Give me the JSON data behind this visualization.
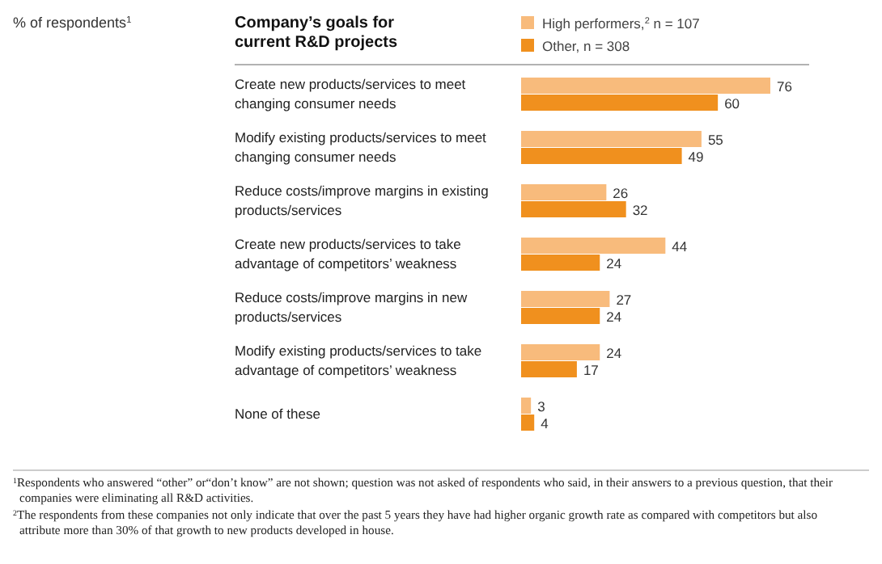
{
  "chart_data": {
    "type": "bar",
    "orientation": "horizontal",
    "title": "Company’s goals for current R&D projects",
    "categories": [
      "Create new products/services to meet changing consumer needs",
      "Modify existing products/services to meet changing consumer needs",
      "Reduce costs/improve margins in existing products/services",
      "Create new products/services to take advantage of competitors’ weakness",
      "Reduce costs/improve margins in new products/services",
      "Modify existing products/services to take advantage of competitors’ weakness",
      "None of these"
    ],
    "series": [
      {
        "name": "High performers,$^{2}$ n = 107",
        "color": "#f8bb7c",
        "values": [
          76,
          55,
          26,
          44,
          27,
          24,
          3
        ]
      },
      {
        "name": "Other, n = 308",
        "color": "#f0901e",
        "values": [
          60,
          49,
          32,
          24,
          24,
          17,
          4
        ]
      }
    ],
    "data_labels": true,
    "legend": "top",
    "annotations": [
      "% of respondents$^{1}$",
      "$^{1}$Respondents who answered “other” or“don’t know” are not shown; question was not asked of respondents who said, in their answers to a previous question, that their companies were eliminating all R&D activities.",
      "$^{2}$The respondents from these companies not only indicate that over the past 5 years they have had higher organic growth rate as compared with competitors but also attribute more than 30% of that growth to new products developed in house."
    ]
  }
}
